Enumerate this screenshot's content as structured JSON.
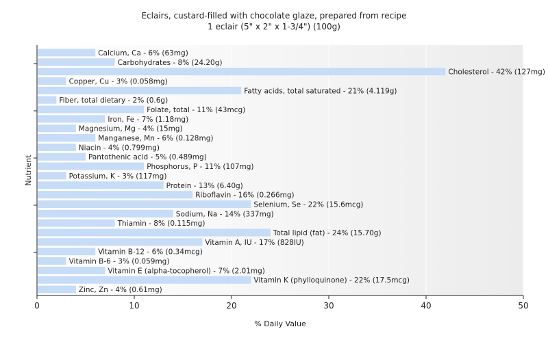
{
  "chart_data": {
    "type": "bar",
    "orientation": "horizontal",
    "title": "Eclairs, custard-filled with chocolate glaze, prepared from recipe",
    "subtitle": "1 eclair (5\" x 2\" x 1-3/4\") (100g)",
    "xlabel": "% Daily Value",
    "ylabel": "Nutrient",
    "xlim": [
      0,
      50
    ],
    "xticks": [
      0,
      10,
      20,
      30,
      40,
      50
    ],
    "grid": true,
    "bar_color": "#c6dcf7",
    "categories": [
      "Calcium, Ca",
      "Carbohydrates",
      "Cholesterol",
      "Copper, Cu",
      "Fatty acids, total saturated",
      "Fiber, total dietary",
      "Folate, total",
      "Iron, Fe",
      "Magnesium, Mg",
      "Manganese, Mn",
      "Niacin",
      "Pantothenic acid",
      "Phosphorus, P",
      "Potassium, K",
      "Protein",
      "Riboflavin",
      "Selenium, Se",
      "Sodium, Na",
      "Thiamin",
      "Total lipid (fat)",
      "Vitamin A, IU",
      "Vitamin B-12",
      "Vitamin B-6",
      "Vitamin E (alpha-tocopherol)",
      "Vitamin K (phylloquinone)",
      "Zinc, Zn"
    ],
    "values": [
      6,
      8,
      42,
      3,
      21,
      2,
      11,
      7,
      4,
      6,
      4,
      5,
      11,
      3,
      13,
      16,
      22,
      14,
      8,
      24,
      17,
      6,
      3,
      7,
      22,
      4
    ],
    "bar_labels": [
      "Calcium, Ca - 6% (63mg)",
      "Carbohydrates - 8% (24.20g)",
      "Cholesterol - 42% (127mg)",
      "Copper, Cu - 3% (0.058mg)",
      "Fatty acids, total saturated - 21% (4.119g)",
      "Fiber, total dietary - 2% (0.6g)",
      "Folate, total - 11% (43mcg)",
      "Iron, Fe - 7% (1.18mg)",
      "Magnesium, Mg - 4% (15mg)",
      "Manganese, Mn - 6% (0.128mg)",
      "Niacin - 4% (0.799mg)",
      "Pantothenic acid - 5% (0.489mg)",
      "Phosphorus, P - 11% (107mg)",
      "Potassium, K - 3% (117mg)",
      "Protein - 13% (6.40g)",
      "Riboflavin - 16% (0.266mg)",
      "Selenium, Se - 22% (15.6mcg)",
      "Sodium, Na - 14% (337mg)",
      "Thiamin - 8% (0.115mg)",
      "Total lipid (fat) - 24% (15.70g)",
      "Vitamin A, IU - 17% (828IU)",
      "Vitamin B-12 - 6% (0.34mcg)",
      "Vitamin B-6 - 3% (0.059mg)",
      "Vitamin E (alpha-tocopherol) - 7% (2.01mg)",
      "Vitamin K (phylloquinone) - 22% (17.5mcg)",
      "Zinc, Zn - 4% (0.61mg)"
    ]
  }
}
